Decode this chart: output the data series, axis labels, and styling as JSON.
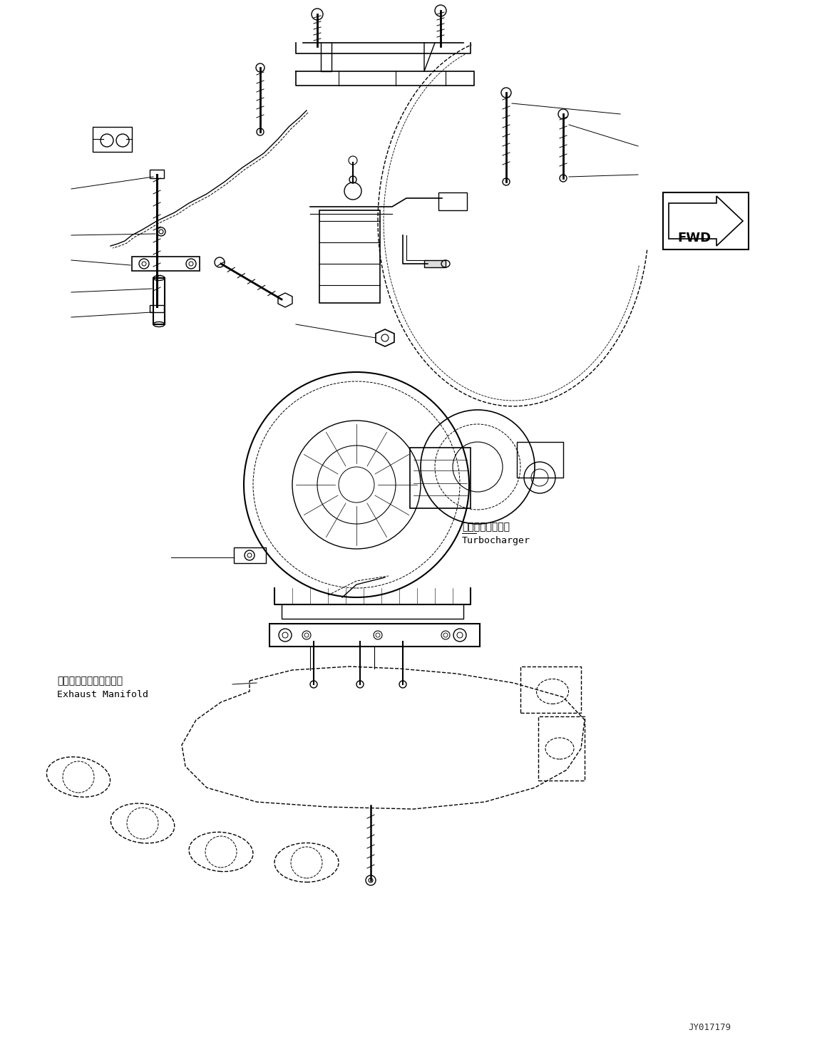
{
  "background_color": "#ffffff",
  "fig_width": 11.53,
  "fig_height": 14.59,
  "dpi": 100,
  "watermark": "JY017179",
  "label_turbocharger_jp": "ターボチャージャ",
  "label_turbocharger_en": "Turbocharger",
  "label_exhaust_jp": "エキゾーストマニホルド",
  "label_exhaust_en": "Exhaust Manifold",
  "fwd_label": "FWD",
  "line_color": "#000000",
  "drawing_color": "#1a1a1a"
}
